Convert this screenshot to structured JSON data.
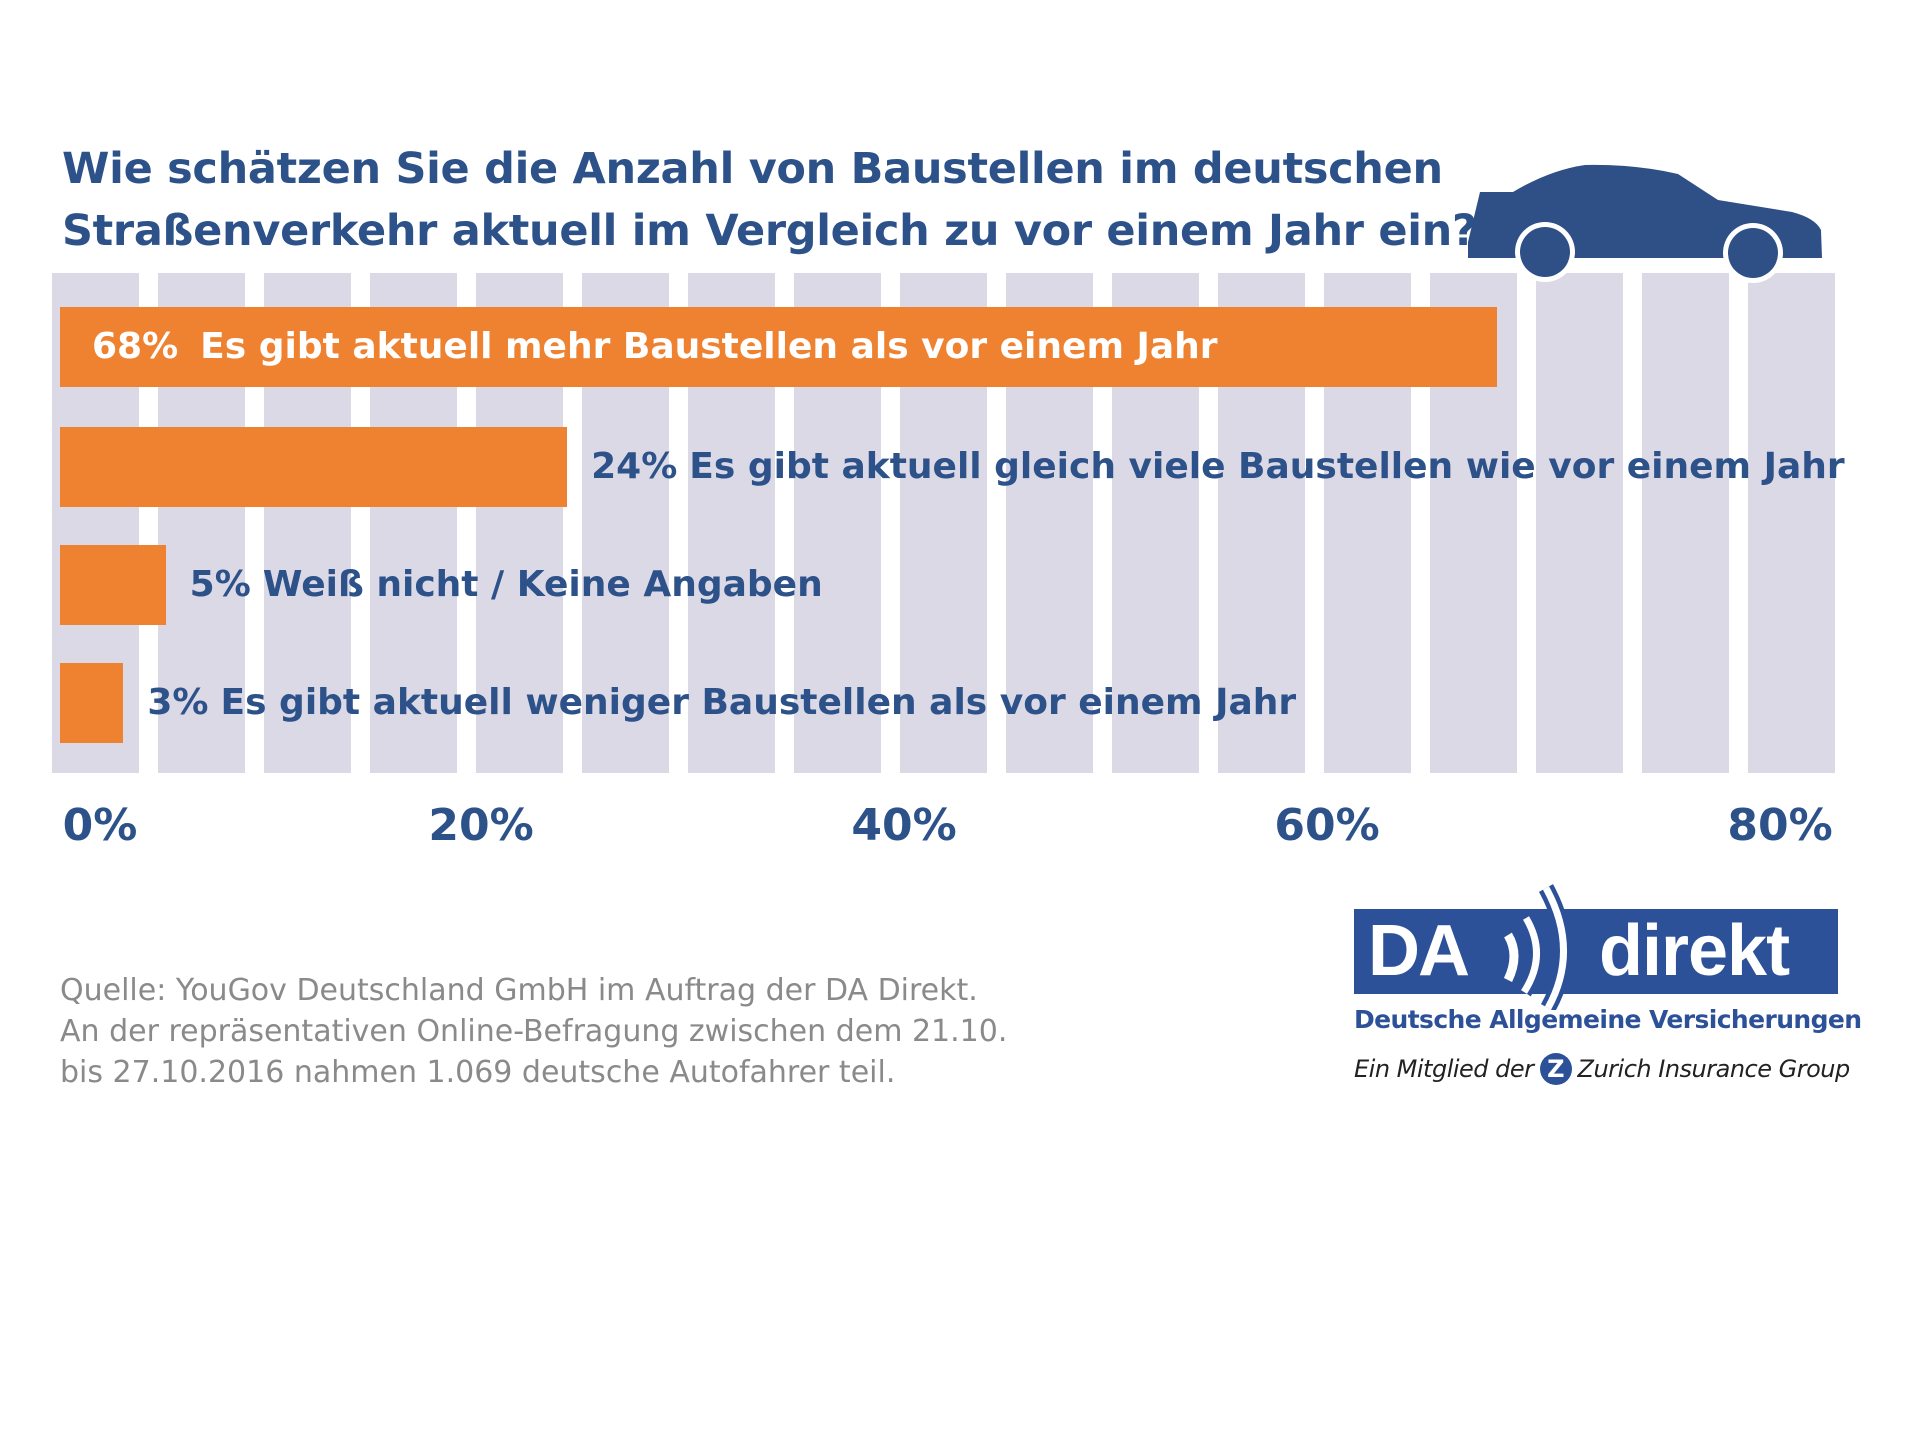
{
  "chart_data": {
    "type": "bar",
    "orientation": "horizontal",
    "title": "Wie schätzen Sie die Anzahl von Baustellen im deutschen Straßenverkehr aktuell im Vergleich zu vor einem Jahr ein?",
    "title_lines": [
      "Wie schätzen Sie die Anzahl von Baustellen im deutschen",
      "Straßenverkehr aktuell im Vergleich zu vor einem Jahr ein?"
    ],
    "categories": [
      "Es gibt aktuell mehr Baustellen als vor einem Jahr",
      "Es gibt aktuell gleich viele Baustellen wie vor einem Jahr",
      "Weiß nicht / Keine Angaben",
      "Es gibt aktuell weniger Baustellen als vor einem Jahr"
    ],
    "values": [
      68,
      24,
      5,
      3
    ],
    "data_labels": [
      "68%",
      "24%",
      "5%",
      "3%"
    ],
    "xlim": [
      0,
      84
    ],
    "x_ticks": [
      "0%",
      "20%",
      "40%",
      "60%",
      "80%"
    ],
    "x_tick_values": [
      0,
      20,
      40,
      60,
      80
    ],
    "grid": true,
    "xlabel": "",
    "ylabel": ""
  },
  "colors": {
    "bar": "#ef8230",
    "text": "#2d5189",
    "grid_column": "#dcd9e6",
    "source": "#8a8a8a"
  },
  "decoration": {
    "icon": "car-icon"
  },
  "source": {
    "lines": [
      "Quelle: YouGov Deutschland GmbH im Auftrag der DA Direkt.",
      "An der repräsentativen Online-Befragung zwischen dem 21.10.",
      "bis 27.10.2016 nahmen 1.069 deutsche Autofahrer teil."
    ]
  },
  "logo": {
    "brand_left": "DA",
    "brand_right": "direkt",
    "subtitle": "Deutsche Allgemeine Versicherungen",
    "member_prefix": "Ein Mitglied der",
    "member_mark": "Z",
    "member_group": "Zurich Insurance Group"
  }
}
